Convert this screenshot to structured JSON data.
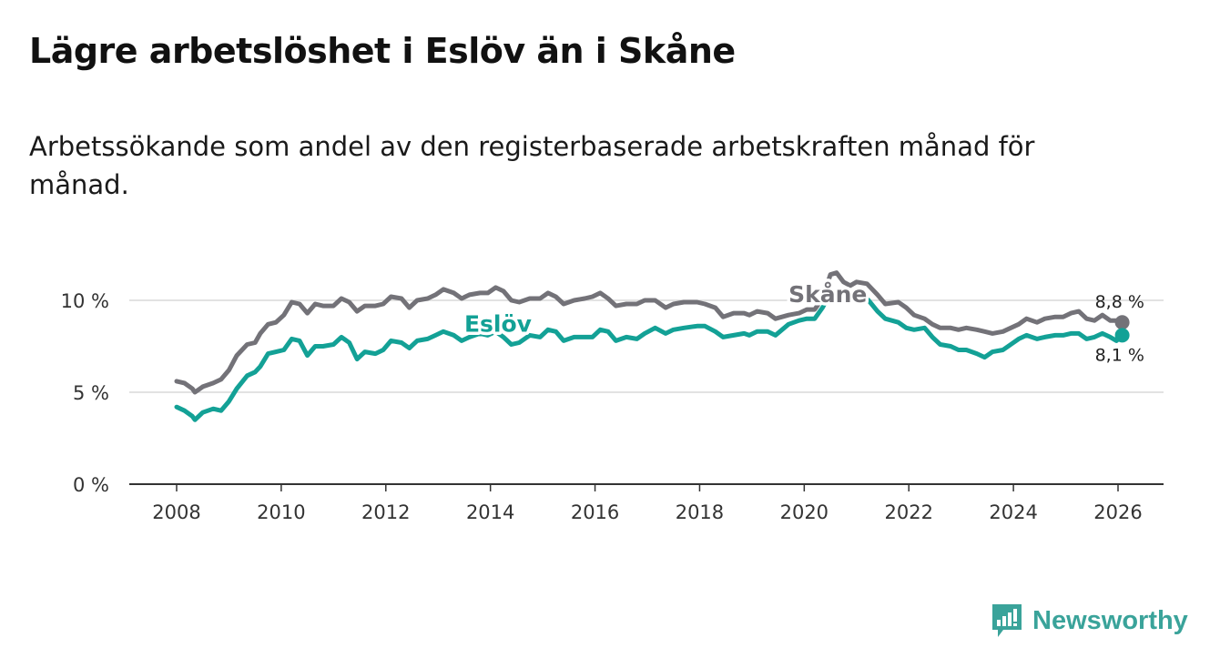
{
  "title": "Lägre arbetslöshet i Eslöv än i Skåne",
  "subtitle": "Arbetssökande som andel av den registerbaserade arbetskraften månad för månad.",
  "brand": {
    "name": "Newsworthy",
    "icon": "newsworthy-logo-icon",
    "color": "#3aa39a"
  },
  "chart_data": {
    "type": "line",
    "title": "Lägre arbetslöshet i Eslöv än i Skåne",
    "subtitle": "Arbetssökande som andel av den registerbaserade arbetskraften månad för månad.",
    "xlabel": "",
    "ylabel": "",
    "xlim": [
      2007.1,
      2027.0
    ],
    "ylim": [
      0,
      10
    ],
    "x_ticks": [
      2008,
      2010,
      2012,
      2014,
      2016,
      2018,
      2020,
      2022,
      2024,
      2026
    ],
    "y_ticks": [
      {
        "value": 0,
        "label": "0 %"
      },
      {
        "value": 5,
        "label": "5 %"
      },
      {
        "value": 10,
        "label": "10 %"
      }
    ],
    "grid": "horizontal",
    "series": [
      {
        "name": "Skåne",
        "color": "#737278",
        "end_label": "8,8 %",
        "points": [
          [
            2008.0,
            5.6
          ],
          [
            2008.15,
            5.5
          ],
          [
            2008.3,
            5.2
          ],
          [
            2008.35,
            5.0
          ],
          [
            2008.5,
            5.3
          ],
          [
            2008.7,
            5.5
          ],
          [
            2008.85,
            5.7
          ],
          [
            2009.0,
            6.2
          ],
          [
            2009.15,
            7.0
          ],
          [
            2009.35,
            7.6
          ],
          [
            2009.5,
            7.7
          ],
          [
            2009.6,
            8.2
          ],
          [
            2009.75,
            8.7
          ],
          [
            2009.9,
            8.8
          ],
          [
            2010.05,
            9.2
          ],
          [
            2010.2,
            9.9
          ],
          [
            2010.35,
            9.8
          ],
          [
            2010.5,
            9.3
          ],
          [
            2010.65,
            9.8
          ],
          [
            2010.8,
            9.7
          ],
          [
            2011.0,
            9.7
          ],
          [
            2011.15,
            10.1
          ],
          [
            2011.3,
            9.9
          ],
          [
            2011.45,
            9.4
          ],
          [
            2011.6,
            9.7
          ],
          [
            2011.8,
            9.7
          ],
          [
            2011.95,
            9.8
          ],
          [
            2012.1,
            10.2
          ],
          [
            2012.3,
            10.1
          ],
          [
            2012.45,
            9.6
          ],
          [
            2012.6,
            10.0
          ],
          [
            2012.8,
            10.1
          ],
          [
            2012.95,
            10.3
          ],
          [
            2013.1,
            10.6
          ],
          [
            2013.3,
            10.4
          ],
          [
            2013.45,
            10.1
          ],
          [
            2013.6,
            10.3
          ],
          [
            2013.8,
            10.4
          ],
          [
            2013.95,
            10.4
          ],
          [
            2014.1,
            10.7
          ],
          [
            2014.25,
            10.5
          ],
          [
            2014.4,
            10.0
          ],
          [
            2014.55,
            9.9
          ],
          [
            2014.75,
            10.1
          ],
          [
            2014.95,
            10.1
          ],
          [
            2015.1,
            10.4
          ],
          [
            2015.25,
            10.2
          ],
          [
            2015.4,
            9.8
          ],
          [
            2015.6,
            10.0
          ],
          [
            2015.8,
            10.1
          ],
          [
            2015.95,
            10.2
          ],
          [
            2016.1,
            10.4
          ],
          [
            2016.25,
            10.1
          ],
          [
            2016.4,
            9.7
          ],
          [
            2016.6,
            9.8
          ],
          [
            2016.8,
            9.8
          ],
          [
            2016.95,
            10.0
          ],
          [
            2017.15,
            10.0
          ],
          [
            2017.35,
            9.6
          ],
          [
            2017.5,
            9.8
          ],
          [
            2017.7,
            9.9
          ],
          [
            2017.95,
            9.9
          ],
          [
            2018.1,
            9.8
          ],
          [
            2018.3,
            9.6
          ],
          [
            2018.45,
            9.1
          ],
          [
            2018.65,
            9.3
          ],
          [
            2018.85,
            9.3
          ],
          [
            2018.95,
            9.2
          ],
          [
            2019.1,
            9.4
          ],
          [
            2019.3,
            9.3
          ],
          [
            2019.45,
            9.0
          ],
          [
            2019.7,
            9.2
          ],
          [
            2019.9,
            9.3
          ],
          [
            2020.05,
            9.5
          ],
          [
            2020.2,
            9.5
          ],
          [
            2020.35,
            10.1
          ],
          [
            2020.5,
            11.4
          ],
          [
            2020.62,
            11.5
          ],
          [
            2020.75,
            11.0
          ],
          [
            2020.88,
            10.8
          ],
          [
            2021.0,
            11.0
          ],
          [
            2021.2,
            10.9
          ],
          [
            2021.4,
            10.3
          ],
          [
            2021.55,
            9.8
          ],
          [
            2021.8,
            9.9
          ],
          [
            2021.95,
            9.6
          ],
          [
            2022.1,
            9.2
          ],
          [
            2022.3,
            9.0
          ],
          [
            2022.45,
            8.7
          ],
          [
            2022.6,
            8.5
          ],
          [
            2022.8,
            8.5
          ],
          [
            2022.95,
            8.4
          ],
          [
            2023.1,
            8.5
          ],
          [
            2023.3,
            8.4
          ],
          [
            2023.45,
            8.3
          ],
          [
            2023.6,
            8.2
          ],
          [
            2023.8,
            8.3
          ],
          [
            2023.95,
            8.5
          ],
          [
            2024.1,
            8.7
          ],
          [
            2024.25,
            9.0
          ],
          [
            2024.45,
            8.8
          ],
          [
            2024.6,
            9.0
          ],
          [
            2024.8,
            9.1
          ],
          [
            2024.95,
            9.1
          ],
          [
            2025.1,
            9.3
          ],
          [
            2025.25,
            9.4
          ],
          [
            2025.4,
            9.0
          ],
          [
            2025.55,
            8.9
          ],
          [
            2025.7,
            9.2
          ],
          [
            2025.85,
            8.9
          ],
          [
            2025.97,
            8.9
          ],
          [
            2026.08,
            8.8
          ]
        ]
      },
      {
        "name": "Eslöv",
        "color": "#13a196",
        "end_label": "8,1 %",
        "points": [
          [
            2008.0,
            4.2
          ],
          [
            2008.15,
            4.0
          ],
          [
            2008.3,
            3.7
          ],
          [
            2008.35,
            3.5
          ],
          [
            2008.5,
            3.9
          ],
          [
            2008.7,
            4.1
          ],
          [
            2008.85,
            4.0
          ],
          [
            2009.0,
            4.5
          ],
          [
            2009.15,
            5.2
          ],
          [
            2009.35,
            5.9
          ],
          [
            2009.5,
            6.1
          ],
          [
            2009.6,
            6.4
          ],
          [
            2009.75,
            7.1
          ],
          [
            2009.9,
            7.2
          ],
          [
            2010.05,
            7.3
          ],
          [
            2010.2,
            7.9
          ],
          [
            2010.35,
            7.8
          ],
          [
            2010.5,
            7.0
          ],
          [
            2010.65,
            7.5
          ],
          [
            2010.8,
            7.5
          ],
          [
            2011.0,
            7.6
          ],
          [
            2011.15,
            8.0
          ],
          [
            2011.3,
            7.7
          ],
          [
            2011.45,
            6.8
          ],
          [
            2011.6,
            7.2
          ],
          [
            2011.8,
            7.1
          ],
          [
            2011.95,
            7.3
          ],
          [
            2012.1,
            7.8
          ],
          [
            2012.3,
            7.7
          ],
          [
            2012.45,
            7.4
          ],
          [
            2012.6,
            7.8
          ],
          [
            2012.8,
            7.9
          ],
          [
            2012.95,
            8.1
          ],
          [
            2013.1,
            8.3
          ],
          [
            2013.3,
            8.1
          ],
          [
            2013.45,
            7.8
          ],
          [
            2013.6,
            8.0
          ],
          [
            2013.8,
            8.2
          ],
          [
            2013.95,
            8.1
          ],
          [
            2014.1,
            8.3
          ],
          [
            2014.25,
            8.0
          ],
          [
            2014.4,
            7.6
          ],
          [
            2014.55,
            7.7
          ],
          [
            2014.75,
            8.1
          ],
          [
            2014.95,
            8.0
          ],
          [
            2015.1,
            8.4
          ],
          [
            2015.25,
            8.3
          ],
          [
            2015.4,
            7.8
          ],
          [
            2015.6,
            8.0
          ],
          [
            2015.8,
            8.0
          ],
          [
            2015.95,
            8.0
          ],
          [
            2016.1,
            8.4
          ],
          [
            2016.25,
            8.3
          ],
          [
            2016.4,
            7.8
          ],
          [
            2016.6,
            8.0
          ],
          [
            2016.8,
            7.9
          ],
          [
            2016.95,
            8.2
          ],
          [
            2017.15,
            8.5
          ],
          [
            2017.35,
            8.2
          ],
          [
            2017.5,
            8.4
          ],
          [
            2017.7,
            8.5
          ],
          [
            2017.95,
            8.6
          ],
          [
            2018.1,
            8.6
          ],
          [
            2018.3,
            8.3
          ],
          [
            2018.45,
            8.0
          ],
          [
            2018.65,
            8.1
          ],
          [
            2018.85,
            8.2
          ],
          [
            2018.95,
            8.1
          ],
          [
            2019.1,
            8.3
          ],
          [
            2019.3,
            8.3
          ],
          [
            2019.45,
            8.1
          ],
          [
            2019.7,
            8.7
          ],
          [
            2019.9,
            8.9
          ],
          [
            2020.05,
            9.0
          ],
          [
            2020.2,
            9.0
          ],
          [
            2020.35,
            9.6
          ],
          [
            2020.5,
            10.4
          ],
          [
            2020.62,
            10.5
          ],
          [
            2020.75,
            10.2
          ],
          [
            2020.88,
            10.0
          ],
          [
            2021.0,
            10.2
          ],
          [
            2021.2,
            10.1
          ],
          [
            2021.4,
            9.4
          ],
          [
            2021.55,
            9.0
          ],
          [
            2021.8,
            8.8
          ],
          [
            2021.95,
            8.5
          ],
          [
            2022.1,
            8.4
          ],
          [
            2022.3,
            8.5
          ],
          [
            2022.45,
            8.0
          ],
          [
            2022.6,
            7.6
          ],
          [
            2022.8,
            7.5
          ],
          [
            2022.95,
            7.3
          ],
          [
            2023.1,
            7.3
          ],
          [
            2023.3,
            7.1
          ],
          [
            2023.45,
            6.9
          ],
          [
            2023.6,
            7.2
          ],
          [
            2023.8,
            7.3
          ],
          [
            2023.95,
            7.6
          ],
          [
            2024.1,
            7.9
          ],
          [
            2024.25,
            8.1
          ],
          [
            2024.45,
            7.9
          ],
          [
            2024.6,
            8.0
          ],
          [
            2024.8,
            8.1
          ],
          [
            2024.95,
            8.1
          ],
          [
            2025.1,
            8.2
          ],
          [
            2025.25,
            8.2
          ],
          [
            2025.4,
            7.9
          ],
          [
            2025.55,
            8.0
          ],
          [
            2025.7,
            8.2
          ],
          [
            2025.85,
            8.0
          ],
          [
            2025.97,
            7.8
          ],
          [
            2026.08,
            8.1
          ]
        ]
      }
    ],
    "series_label_positions": [
      {
        "series": "Skåne",
        "x": 2019.7,
        "y": 9.9
      },
      {
        "series": "Eslöv",
        "x": 2013.5,
        "y": 8.3
      }
    ]
  }
}
